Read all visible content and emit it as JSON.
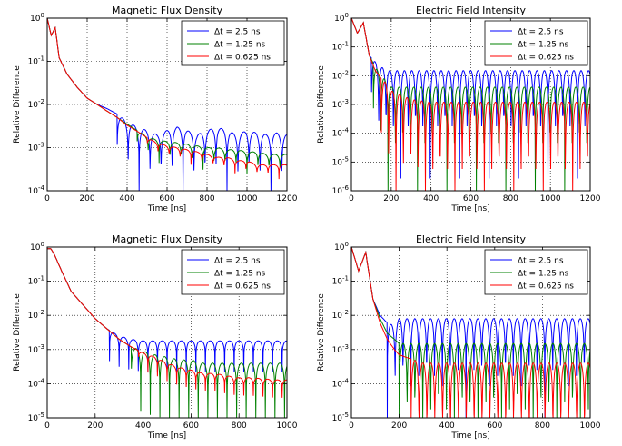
{
  "chart_data": [
    {
      "type": "line",
      "title": "Magnetic Flux Density",
      "xlabel": "Time [ns]",
      "ylabel": "Relative Difference",
      "xlim": [
        0,
        1200
      ],
      "ylim_exp": [
        -4,
        0
      ],
      "yscale": "log",
      "xticks": [
        "0",
        "200",
        "400",
        "600",
        "800",
        "1000",
        "1200"
      ],
      "yticks": [
        "10^0",
        "10^-1",
        "10^-2",
        "10^-3",
        "10^-4"
      ],
      "grid": true,
      "legend_position": "top-right",
      "series": [
        {
          "name": "Δt = 2.5 ns",
          "color": "#0000ff",
          "x": [
            0,
            20,
            40,
            60,
            100,
            150,
            200,
            250,
            300,
            350,
            400,
            450,
            500,
            550,
            600,
            650,
            700,
            750,
            800,
            850,
            900,
            950,
            1000,
            1050,
            1100,
            1150,
            1200
          ],
          "y": [
            1,
            0.4,
            0.6,
            0.12,
            0.05,
            0.025,
            0.014,
            0.01,
            0.008,
            0.006,
            0.004,
            0.003,
            0.0025,
            0.002,
            0.0025,
            0.003,
            0.0025,
            0.002,
            0.0025,
            0.003,
            0.0025,
            0.002,
            0.0025,
            0.0022,
            0.002,
            0.0022,
            0.002
          ],
          "osc": {
            "start": 350,
            "period": 55,
            "depth": 1.0
          }
        },
        {
          "name": "Δt = 1.25 ns",
          "color": "#008000",
          "x": [
            0,
            20,
            40,
            60,
            100,
            150,
            200,
            250,
            300,
            350,
            400,
            450,
            500,
            550,
            600,
            650,
            700,
            750,
            800,
            850,
            900,
            950,
            1000,
            1050,
            1100,
            1150,
            1200
          ],
          "y": [
            1,
            0.4,
            0.6,
            0.12,
            0.05,
            0.025,
            0.014,
            0.01,
            0.007,
            0.005,
            0.0035,
            0.0025,
            0.0018,
            0.0015,
            0.0014,
            0.0013,
            0.0012,
            0.0011,
            0.001,
            0.001,
            0.0009,
            0.0009,
            0.0008,
            0.0008,
            0.0007,
            0.0007,
            0.0007
          ],
          "osc": {
            "start": 450,
            "period": 55,
            "depth": 0.35
          }
        },
        {
          "name": "Δt = 0.625 ns",
          "color": "#ff0000",
          "x": [
            0,
            20,
            40,
            60,
            100,
            150,
            200,
            250,
            300,
            350,
            400,
            450,
            500,
            550,
            600,
            650,
            700,
            750,
            800,
            850,
            900,
            950,
            1000,
            1050,
            1100,
            1150,
            1200
          ],
          "y": [
            1,
            0.4,
            0.6,
            0.12,
            0.05,
            0.025,
            0.014,
            0.01,
            0.007,
            0.005,
            0.0033,
            0.0024,
            0.0017,
            0.0013,
            0.0011,
            0.001,
            0.0009,
            0.0008,
            0.0007,
            0.0006,
            0.0006,
            0.0005,
            0.0005,
            0.0004,
            0.0004,
            0.0004,
            0.0004
          ],
          "osc": {
            "start": 500,
            "period": 55,
            "depth": 0.22
          }
        }
      ]
    },
    {
      "type": "line",
      "title": "Electric Field Intensity",
      "xlabel": "Time [ns]",
      "ylabel": "Relative Difference",
      "xlim": [
        0,
        1200
      ],
      "ylim_exp": [
        -6,
        0
      ],
      "yscale": "log",
      "xticks": [
        "0",
        "200",
        "400",
        "600",
        "800",
        "1000",
        "1200"
      ],
      "yticks": [
        "10^0",
        "10^-1",
        "10^-2",
        "10^-3",
        "10^-4",
        "10^-5",
        "10^-6"
      ],
      "grid": true,
      "legend_position": "top-right",
      "series": [
        {
          "name": "Δt = 2.5 ns",
          "color": "#0000ff",
          "x": [
            0,
            30,
            60,
            90,
            120,
            150,
            180,
            200,
            300,
            400,
            500,
            600,
            700,
            800,
            900,
            1000,
            1100,
            1200
          ],
          "y": [
            1,
            0.3,
            0.7,
            0.05,
            0.03,
            0.02,
            0.015,
            0.015,
            0.015,
            0.015,
            0.015,
            0.015,
            0.015,
            0.015,
            0.015,
            0.015,
            0.015,
            0.015
          ],
          "osc": {
            "start": 100,
            "period": 37,
            "depth": 2.5
          }
        },
        {
          "name": "Δt = 1.25 ns",
          "color": "#008000",
          "x": [
            0,
            30,
            60,
            90,
            120,
            150,
            180,
            200,
            300,
            400,
            500,
            600,
            700,
            800,
            900,
            1000,
            1100,
            1200
          ],
          "y": [
            1,
            0.3,
            0.7,
            0.05,
            0.02,
            0.01,
            0.006,
            0.004,
            0.004,
            0.004,
            0.004,
            0.004,
            0.004,
            0.004,
            0.004,
            0.004,
            0.004,
            0.004
          ],
          "osc": {
            "start": 110,
            "period": 37,
            "depth": 2.5
          }
        },
        {
          "name": "Δt = 0.625 ns",
          "color": "#ff0000",
          "x": [
            0,
            30,
            60,
            90,
            120,
            150,
            180,
            200,
            300,
            400,
            500,
            600,
            700,
            800,
            900,
            1000,
            1100,
            1200
          ],
          "y": [
            1,
            0.3,
            0.7,
            0.05,
            0.015,
            0.008,
            0.005,
            0.003,
            0.0015,
            0.0012,
            0.0012,
            0.0012,
            0.0012,
            0.0012,
            0.0012,
            0.0012,
            0.0012,
            0.0012
          ],
          "osc": {
            "start": 150,
            "period": 37,
            "depth": 3.0
          }
        }
      ]
    },
    {
      "type": "line",
      "title": "Magnetic Flux Density",
      "xlabel": "Time [ns]",
      "ylabel": "Relative Difference",
      "xlim": [
        0,
        1000
      ],
      "ylim_exp": [
        -5,
        0
      ],
      "yscale": "log",
      "xticks": [
        "0",
        "200",
        "400",
        "600",
        "800",
        "1000"
      ],
      "yticks": [
        "10^0",
        "10^-1",
        "10^-2",
        "10^-3",
        "10^-4",
        "10^-5"
      ],
      "grid": true,
      "legend_position": "top-right",
      "series": [
        {
          "name": "Δt = 2.5 ns",
          "color": "#0000ff",
          "x": [
            0,
            15,
            30,
            60,
            100,
            150,
            200,
            250,
            300,
            350,
            400,
            450,
            500,
            550,
            600,
            650,
            700,
            750,
            800,
            850,
            900,
            950,
            1000
          ],
          "y": [
            0.9,
            0.9,
            0.6,
            0.2,
            0.05,
            0.02,
            0.008,
            0.004,
            0.0025,
            0.002,
            0.0018,
            0.0018,
            0.0018,
            0.0018,
            0.0018,
            0.0018,
            0.0018,
            0.0018,
            0.0018,
            0.0018,
            0.0018,
            0.0018,
            0.0018
          ],
          "osc": {
            "start": 260,
            "period": 40,
            "depth": 0.6
          }
        },
        {
          "name": "Δt = 1.25 ns",
          "color": "#008000",
          "x": [
            0,
            15,
            30,
            60,
            100,
            150,
            200,
            250,
            300,
            350,
            400,
            450,
            500,
            550,
            600,
            650,
            700,
            750,
            800,
            850,
            900,
            950,
            1000
          ],
          "y": [
            0.9,
            0.9,
            0.6,
            0.2,
            0.05,
            0.02,
            0.008,
            0.004,
            0.002,
            0.0012,
            0.0009,
            0.0007,
            0.0006,
            0.0005,
            0.0005,
            0.0004,
            0.0004,
            0.0004,
            0.0004,
            0.0004,
            0.0004,
            0.0004,
            0.0004
          ],
          "osc": {
            "start": 350,
            "period": 40,
            "depth": 1.2
          }
        },
        {
          "name": "Δt = 0.625 ns",
          "color": "#ff0000",
          "x": [
            0,
            15,
            30,
            60,
            100,
            150,
            200,
            250,
            300,
            350,
            400,
            450,
            500,
            550,
            600,
            650,
            700,
            750,
            800,
            850,
            900,
            950,
            1000
          ],
          "y": [
            0.9,
            0.9,
            0.6,
            0.2,
            0.05,
            0.02,
            0.008,
            0.004,
            0.002,
            0.0012,
            0.0008,
            0.0006,
            0.0004,
            0.0003,
            0.00025,
            0.0002,
            0.0002,
            0.00017,
            0.00015,
            0.00015,
            0.00014,
            0.00013,
            0.00013
          ],
          "osc": {
            "start": 380,
            "period": 40,
            "depth": 0.35
          }
        }
      ]
    },
    {
      "type": "line",
      "title": "Electric Field Intensity",
      "xlabel": "Time [ns]",
      "ylabel": "Relative Difference",
      "xlim": [
        0,
        1000
      ],
      "ylim_exp": [
        -5,
        0
      ],
      "yscale": "log",
      "xticks": [
        "0",
        "200",
        "400",
        "600",
        "800",
        "1000"
      ],
      "yticks": [
        "10^0",
        "10^-1",
        "10^-2",
        "10^-3",
        "10^-4",
        "10^-5"
      ],
      "grid": true,
      "legend_position": "top-right",
      "series": [
        {
          "name": "Δt = 2.5 ns",
          "color": "#0000ff",
          "x": [
            0,
            30,
            60,
            90,
            120,
            150,
            180,
            200,
            300,
            400,
            500,
            600,
            700,
            800,
            900,
            1000
          ],
          "y": [
            1,
            0.2,
            0.7,
            0.03,
            0.01,
            0.006,
            0.005,
            0.008,
            0.008,
            0.008,
            0.008,
            0.008,
            0.008,
            0.008,
            0.008,
            0.008
          ],
          "osc": {
            "start": 150,
            "period": 33,
            "depth": 2.0
          }
        },
        {
          "name": "Δt = 1.25 ns",
          "color": "#008000",
          "x": [
            0,
            30,
            60,
            90,
            120,
            150,
            180,
            200,
            300,
            400,
            500,
            600,
            700,
            800,
            900,
            1000
          ],
          "y": [
            1,
            0.2,
            0.7,
            0.03,
            0.008,
            0.003,
            0.002,
            0.0015,
            0.0015,
            0.0015,
            0.0015,
            0.0015,
            0.0015,
            0.0015,
            0.0015,
            0.0015
          ],
          "osc": {
            "start": 200,
            "period": 33,
            "depth": 2.3
          }
        },
        {
          "name": "Δt = 0.625 ns",
          "color": "#ff0000",
          "x": [
            0,
            30,
            60,
            90,
            120,
            150,
            180,
            200,
            300,
            400,
            500,
            600,
            700,
            800,
            900,
            1000
          ],
          "y": [
            1,
            0.2,
            0.7,
            0.03,
            0.006,
            0.002,
            0.001,
            0.0007,
            0.0004,
            0.0004,
            0.0004,
            0.0004,
            0.0004,
            0.0004,
            0.0004,
            0.0004
          ],
          "osc": {
            "start": 250,
            "period": 33,
            "depth": 2.5
          }
        }
      ]
    }
  ]
}
